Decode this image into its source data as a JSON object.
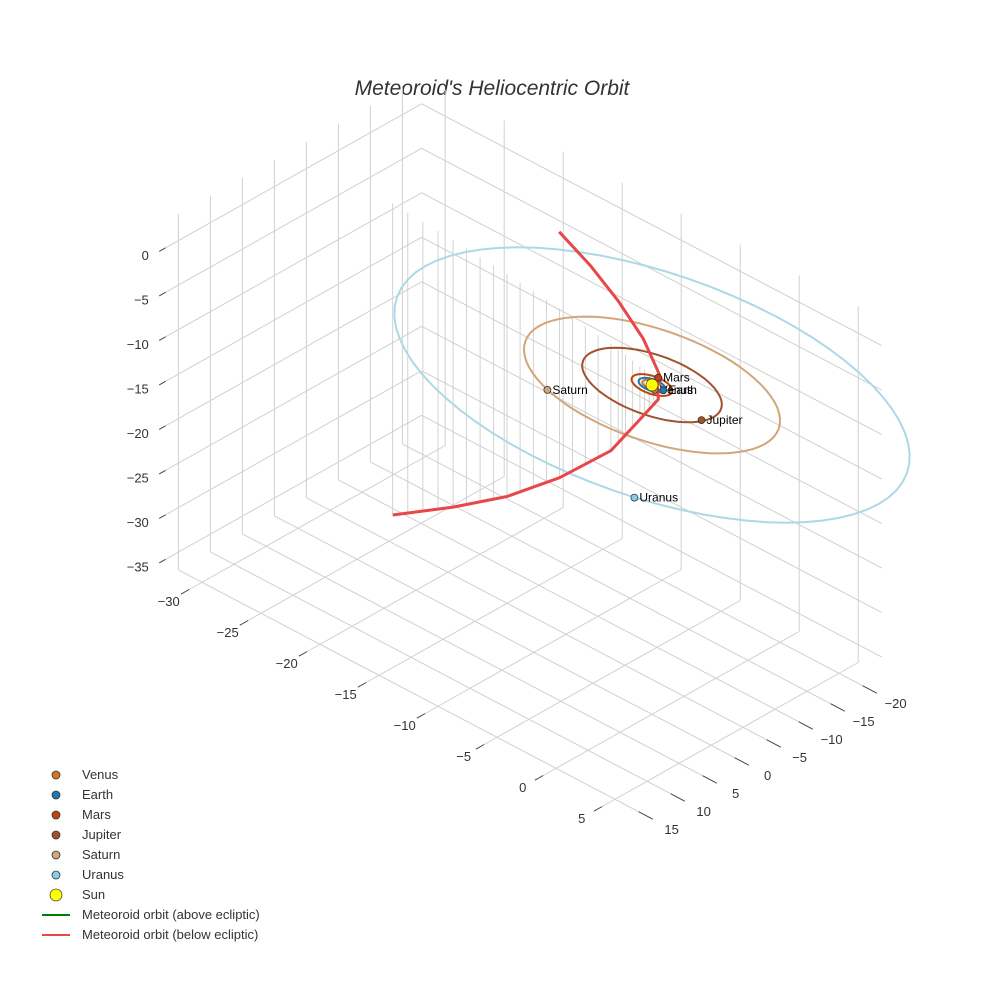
{
  "chart_data": {
    "type": "scatter3d",
    "title": "Meteoroid's Heliocentric Orbit",
    "axes": {
      "x": {
        "ticks": [
          -30,
          -25,
          -20,
          -15,
          -10,
          -5,
          0,
          5
        ],
        "range": [
          -32,
          7
        ]
      },
      "y": {
        "ticks": [
          -20,
          -15,
          -10,
          -5,
          0,
          5,
          10,
          15
        ],
        "range": [
          -23,
          17
        ]
      },
      "z": {
        "ticks": [
          0,
          -5,
          -10,
          -15,
          -20,
          -25,
          -30,
          -35
        ],
        "range": [
          -37,
          3
        ]
      }
    },
    "grid": true,
    "legend_position": "bottom-left",
    "orbits": [
      {
        "name": "Venus",
        "radius": 0.72,
        "color": "#d4751f"
      },
      {
        "name": "Earth",
        "radius": 1.0,
        "color": "#1f77b4"
      },
      {
        "name": "Mars",
        "radius": 1.52,
        "color": "#c1440e"
      },
      {
        "name": "Jupiter",
        "radius": 5.2,
        "color": "#a0522d"
      },
      {
        "name": "Saturn",
        "radius": 9.54,
        "color": "#d2a679"
      },
      {
        "name": "Uranus",
        "radius": 19.2,
        "color": "#add8e6"
      }
    ],
    "planets": [
      {
        "name": "Venus",
        "x": 0.5,
        "y": 0.5,
        "z": 0,
        "color": "#d4751f"
      },
      {
        "name": "Earth",
        "x": 0.9,
        "y": -0.1,
        "z": 0,
        "color": "#1f77b4"
      },
      {
        "name": "Mars",
        "x": -0.3,
        "y": -1.5,
        "z": 0,
        "color": "#c1440e"
      },
      {
        "name": "Jupiter",
        "x": 4.9,
        "y": 1.3,
        "z": 0,
        "color": "#a0522d"
      },
      {
        "name": "Saturn",
        "x": -4.2,
        "y": 8.6,
        "z": 0,
        "color": "#d2a679"
      },
      {
        "name": "Uranus",
        "x": 8.0,
        "y": 17.5,
        "z": 0,
        "color": "#87ceeb"
      }
    ],
    "sun": {
      "name": "Sun",
      "x": 0,
      "y": 0,
      "z": 0,
      "color": "#ffff00"
    },
    "meteoroid_below": {
      "name": "Meteoroid orbit (below ecliptic)",
      "color": "#e8474a",
      "points": [
        [
          -25.5,
          -6.5,
          -35
        ],
        [
          -20,
          -5.8,
          -30
        ],
        [
          -15,
          -5,
          -25
        ],
        [
          -10,
          -4,
          -19
        ],
        [
          -5,
          -2.8,
          -12
        ],
        [
          -2,
          -1.8,
          -6
        ],
        [
          0,
          -1,
          -2
        ],
        [
          0.1,
          -0.6,
          0
        ],
        [
          0,
          -1.5,
          0
        ],
        [
          -1.5,
          -3.2,
          0
        ],
        [
          -4,
          -6,
          0
        ],
        [
          -8,
          -9.5,
          0
        ],
        [
          -12,
          -12.5,
          0
        ],
        [
          -16,
          -15,
          0
        ]
      ],
      "stems_from": 0
    },
    "meteoroid_above": {
      "name": "Meteoroid orbit (above ecliptic)",
      "color": "#008000",
      "points": []
    },
    "legend": [
      {
        "label": "Venus",
        "kind": "dot",
        "color": "#d4751f"
      },
      {
        "label": "Earth",
        "kind": "dot",
        "color": "#1f77b4"
      },
      {
        "label": "Mars",
        "kind": "dot",
        "color": "#c1440e"
      },
      {
        "label": "Jupiter",
        "kind": "dot",
        "color": "#a0522d"
      },
      {
        "label": "Saturn",
        "kind": "dot",
        "color": "#d2a679"
      },
      {
        "label": "Uranus",
        "kind": "dot",
        "color": "#87ceeb"
      },
      {
        "label": "Sun",
        "kind": "sun",
        "color": "#ffff00"
      },
      {
        "label": "Meteoroid orbit (above ecliptic)",
        "kind": "line",
        "color": "#008000"
      },
      {
        "label": "Meteoroid orbit (below ecliptic)",
        "kind": "line",
        "color": "#e8474a"
      }
    ]
  }
}
